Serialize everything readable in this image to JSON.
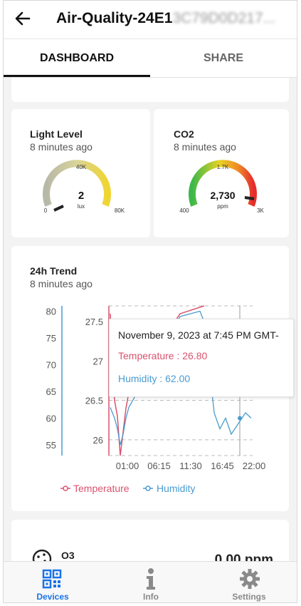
{
  "header": {
    "title": "Air-Quality-24E1",
    "title_obscured": "3C79D0D217..."
  },
  "tabs": [
    {
      "label": "DASHBOARD",
      "active": true
    },
    {
      "label": "SHARE",
      "active": false
    }
  ],
  "light_card": {
    "title": "Light Level",
    "updated": "8 minutes ago",
    "gauge": {
      "value": "2",
      "unit": "lux",
      "min": "0",
      "mid": "40K",
      "max": "80K",
      "fraction": 3e-05
    }
  },
  "co2_card": {
    "title": "CO2",
    "updated": "8 minutes ago",
    "gauge": {
      "value": "2,730",
      "unit": "ppm",
      "min": "400",
      "mid": "1.7K",
      "max": "3K",
      "fraction": 0.896
    }
  },
  "trend_card": {
    "title": "24h Trend",
    "updated": "8 minutes ago"
  },
  "chart_data": {
    "type": "line",
    "title": "24h Trend",
    "x_ticks": [
      "01:00",
      "06:15",
      "11:30",
      "16:45",
      "22:00"
    ],
    "series": [
      {
        "name": "Temperature",
        "color": "#d9536e",
        "axis": "inner",
        "y_ticks": [
          "26",
          "26.5",
          "27",
          "27.5"
        ],
        "ylim": [
          25.8,
          27.7
        ],
        "x": [
          "22:00",
          "22:10",
          "22:20",
          "22:30",
          "22:40",
          "22:50",
          "23:00",
          "23:20",
          "23:40"
        ],
        "values": [
          27.6,
          26.5,
          26.3,
          25.8,
          26.1,
          26.4,
          26.6,
          27.6,
          27.7
        ]
      },
      {
        "name": "Humidity",
        "color": "#4a9bd0",
        "axis": "outer",
        "y_ticks": [
          "55",
          "60",
          "65",
          "70",
          "75",
          "80"
        ],
        "ylim": [
          53,
          81
        ],
        "x": [
          "22:00",
          "22:10",
          "22:20",
          "22:30",
          "22:40",
          "22:50",
          "23:00",
          "23:20",
          "23:40",
          "23:50",
          "16:45",
          "17:30",
          "18:30",
          "19:30",
          "20:30",
          "21:30",
          "22:00"
        ],
        "values": [
          62,
          60,
          58,
          55,
          57,
          60,
          62,
          79,
          80,
          78,
          61,
          58,
          60,
          57,
          59,
          61,
          60
        ]
      }
    ],
    "tooltip": {
      "date": "November 9, 2023 at 7:45 PM GMT-",
      "temperature": "Temperature : 26.80",
      "humidity": "Humidity : 62.00"
    },
    "legend": [
      "Temperature",
      "Humidity"
    ],
    "legend_position": "bottom"
  },
  "o3_card": {
    "title": "O3",
    "value": "0.00 ppm"
  },
  "bottom_nav": [
    {
      "label": "Devices",
      "icon": "qr-code-icon",
      "active": true,
      "color": "#1a73e8"
    },
    {
      "label": "Info",
      "icon": "info-icon",
      "active": false,
      "color": "#8a8a8a"
    },
    {
      "label": "Settings",
      "icon": "gear-icon",
      "active": false,
      "color": "#8a8a8a"
    }
  ]
}
